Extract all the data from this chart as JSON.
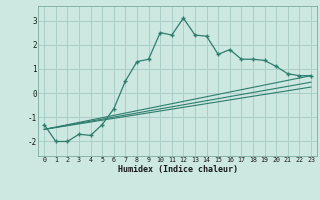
{
  "xlabel": "Humidex (Indice chaleur)",
  "bg_color": "#cce8e0",
  "grid_color": "#aacfc8",
  "line_color": "#2e7d6e",
  "xlim": [
    -0.5,
    23.5
  ],
  "ylim": [
    -2.6,
    3.6
  ],
  "xticks": [
    0,
    1,
    2,
    3,
    4,
    5,
    6,
    7,
    8,
    9,
    10,
    11,
    12,
    13,
    14,
    15,
    16,
    17,
    18,
    19,
    20,
    21,
    22,
    23
  ],
  "yticks": [
    -2,
    -1,
    0,
    1,
    2,
    3
  ],
  "line1_x": [
    0,
    1,
    2,
    3,
    4,
    5,
    6,
    7,
    8,
    9,
    10,
    11,
    12,
    13,
    14,
    15,
    16,
    17,
    18,
    19,
    20,
    21,
    22,
    23
  ],
  "line1_y": [
    -1.3,
    -2.0,
    -2.0,
    -1.7,
    -1.75,
    -1.3,
    -0.65,
    0.5,
    1.3,
    1.4,
    2.5,
    2.4,
    3.1,
    2.4,
    2.35,
    1.6,
    1.8,
    1.4,
    1.4,
    1.35,
    1.1,
    0.8,
    0.72,
    0.72
  ],
  "line2_x": [
    0,
    23
  ],
  "line2_y": [
    -1.5,
    0.72
  ],
  "line3_x": [
    0,
    23
  ],
  "line3_y": [
    -1.5,
    0.45
  ],
  "line4_x": [
    0,
    23
  ],
  "line4_y": [
    -1.5,
    0.25
  ]
}
